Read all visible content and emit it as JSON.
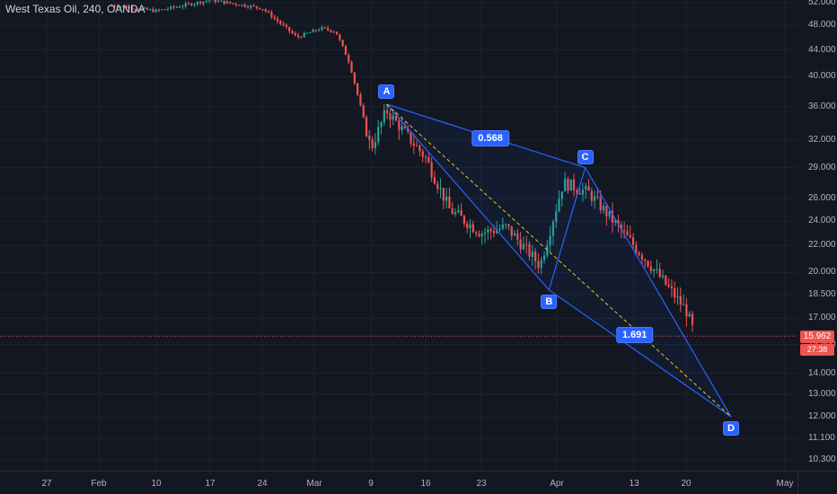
{
  "chart_title": "West Texas Oil, 240, OANDA",
  "price_axis_labels": [
    "52.000",
    "48.000",
    "44.000",
    "40.000",
    "36.000",
    "32.000",
    "29.000",
    "26.000",
    "24.000",
    "22.000",
    "20.000",
    "18.500",
    "17.000",
    "15.500",
    "14.000",
    "13.000",
    "12.000",
    "11.100",
    "10.300"
  ],
  "time_axis_labels": [
    "27",
    "Feb",
    "10",
    "17",
    "24",
    "Mar",
    "9",
    "16",
    "23",
    "Apr",
    "13",
    "20",
    "May"
  ],
  "last_price": "15.962",
  "countdown": "27:38",
  "pattern": {
    "points": [
      "A",
      "B",
      "C",
      "D"
    ],
    "ratio_ac": "0.568",
    "ratio_bd": "1.691"
  },
  "colors": {
    "background": "#131722",
    "grid": "#1e222d",
    "up_candle": "#26a69a",
    "down_candle": "#ef5350",
    "pattern_line": "#2962ff",
    "ad_dashed_line": "#f0c419",
    "label_fill": "#2962ff"
  },
  "chart_data": {
    "type": "candlestick",
    "title": "West Texas Oil, 240, OANDA",
    "x_axis": [
      "27",
      "Feb",
      "10",
      "17",
      "24",
      "Mar",
      "9",
      "16",
      "23",
      "Apr",
      "13",
      "20",
      "May"
    ],
    "y_axis_scale": "log",
    "y_ticks": [
      52,
      48,
      44,
      40,
      36,
      32,
      29,
      26,
      24,
      22,
      20,
      18.5,
      17,
      15.5,
      14,
      13,
      12,
      11.1,
      10.3
    ],
    "close_path": [
      [
        "Feb 3",
        51.5
      ],
      [
        "Feb 10",
        50.5
      ],
      [
        "Feb 17",
        52.5
      ],
      [
        "Feb 24",
        51.0
      ],
      [
        "Feb 28",
        46.0
      ],
      [
        "Mar 2",
        47.5
      ],
      [
        "Mar 4",
        47.0
      ],
      [
        "Mar 6",
        42.0
      ],
      [
        "Mar 9",
        31.0
      ],
      [
        "Mar 11",
        35.5
      ],
      [
        "Mar 16",
        30.0
      ],
      [
        "Mar 19",
        25.0
      ],
      [
        "Mar 23",
        23.0
      ],
      [
        "Mar 26",
        23.5
      ],
      [
        "Mar 30",
        20.5
      ],
      [
        "Apr 2",
        27.5
      ],
      [
        "Apr 6",
        26.5
      ],
      [
        "Apr 9",
        24.5
      ],
      [
        "Apr 13",
        22.0
      ],
      [
        "Apr 16",
        20.0
      ],
      [
        "Apr 20",
        17.5
      ],
      [
        "Apr 21",
        15.962
      ]
    ],
    "harmonic_pattern": {
      "A": 36.3,
      "B": 18.8,
      "C": 29.0,
      "D": 12.0,
      "AC_ratio": 0.568,
      "BD_ratio": 1.691
    },
    "last_price": 15.962
  }
}
